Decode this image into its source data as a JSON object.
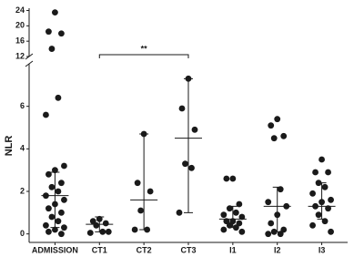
{
  "chart_data": {
    "type": "dot",
    "y_label": "NLR",
    "categories": [
      "ADMISSION",
      "CT1",
      "CT2",
      "CT3",
      "I1",
      "I2",
      "I3"
    ],
    "values": [
      [
        23.5,
        18.5,
        18,
        14,
        6.4,
        5.6,
        3.2,
        3.0,
        2.8,
        2.4,
        2.2,
        2.0,
        1.8,
        1.6,
        1.4,
        1.2,
        1.0,
        0.8,
        0.6,
        0.4,
        0.3,
        0.2,
        0.1,
        0.0
      ],
      [
        0.7,
        0.6,
        0.5,
        0.4,
        0.1,
        0.05,
        0.1
      ],
      [
        4.7,
        2.4,
        2.0,
        1.1,
        0.2,
        0.2
      ],
      [
        7.3,
        5.9,
        4.9,
        3.3,
        3.1,
        1.0
      ],
      [
        2.6,
        2.6,
        1.4,
        1.2,
        1.0,
        0.9,
        0.8,
        0.6,
        0.6,
        0.5,
        0.4,
        0.3,
        0.2,
        0.1
      ],
      [
        5.4,
        5.1,
        4.6,
        4.5,
        2.1,
        1.5,
        1.3,
        0.9,
        0.5,
        0.2,
        0.1,
        0.0,
        0.0
      ],
      [
        3.5,
        2.9,
        2.9,
        2.4,
        2.2,
        1.9,
        1.6,
        1.5,
        1.3,
        1.2,
        0.9,
        0.6,
        0.4,
        0.1
      ]
    ],
    "medians": [
      1.8,
      0.45,
      1.6,
      4.5,
      0.7,
      1.3,
      1.3
    ],
    "error_low": [
      0.3,
      0.1,
      0.2,
      1.0,
      0.3,
      0.1,
      0.7
    ],
    "error_high": [
      2.9,
      0.8,
      4.7,
      7.3,
      1.3,
      2.2,
      2.4
    ],
    "color": "#1a1a1a",
    "axis_segments": [
      {
        "ylim": [
          -0.4,
          8
        ],
        "yticks": [
          0,
          2,
          4,
          6
        ]
      },
      {
        "ylim": [
          12,
          24.6
        ],
        "yticks": [
          12,
          16,
          20,
          24
        ]
      }
    ],
    "annotation": "**"
  }
}
